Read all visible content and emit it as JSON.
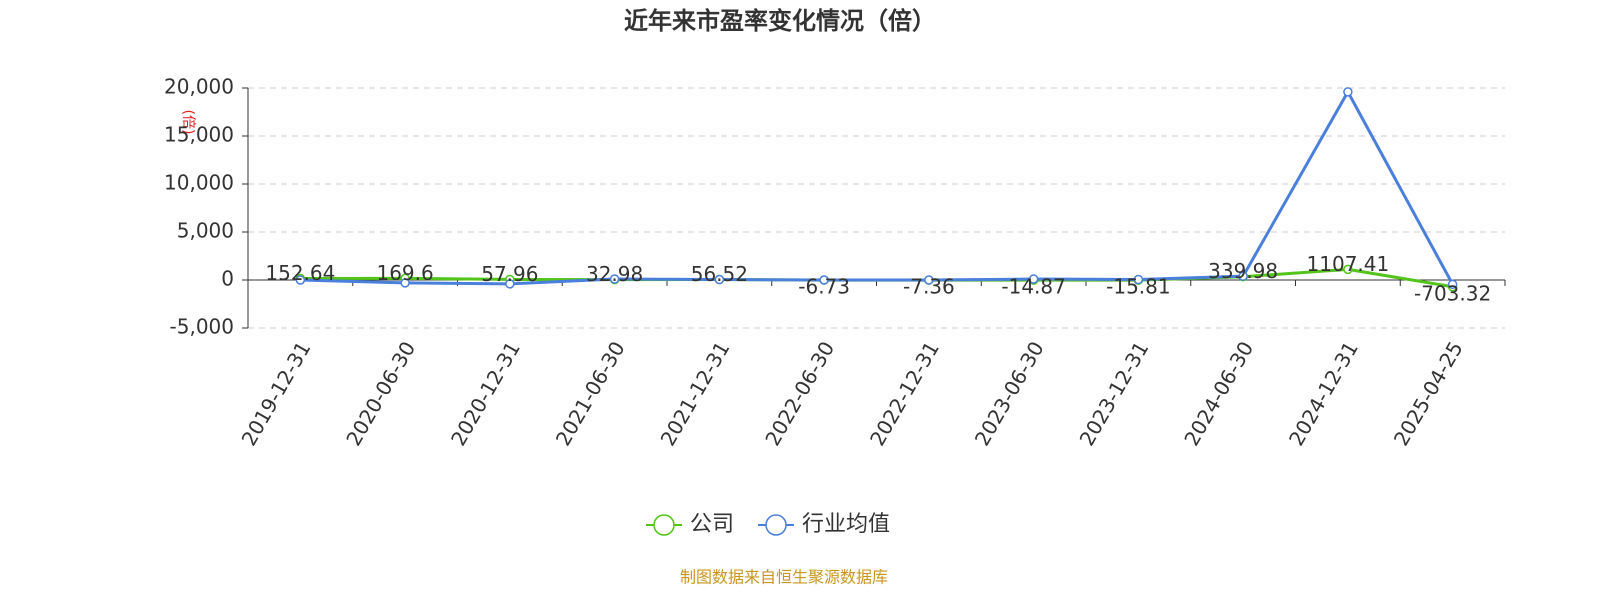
{
  "chart_data": {
    "type": "line",
    "title": "近年来市盈率变化情况（倍）",
    "y_axis_label": "(倍)",
    "source": "制图数据来自恒生聚源数据库",
    "categories": [
      "2019-12-31",
      "2020-06-30",
      "2020-12-31",
      "2021-06-30",
      "2021-12-31",
      "2022-06-30",
      "2022-12-31",
      "2023-06-30",
      "2023-12-31",
      "2024-06-30",
      "2024-12-31",
      "2025-04-25"
    ],
    "series": [
      {
        "name": "公司",
        "color": "#52c41a",
        "values": [
          152.64,
          169.6,
          57.96,
          32.98,
          56.52,
          -6.73,
          -7.36,
          -14.87,
          -15.81,
          339.98,
          1107.41,
          -703.32
        ]
      },
      {
        "name": "行业均值",
        "color": "#4a7fdb",
        "values": [
          0,
          -300,
          -400,
          100,
          50,
          0,
          0,
          100,
          50,
          400,
          19600,
          -450
        ]
      }
    ],
    "ylim": [
      -5000,
      20000
    ],
    "yticks": [
      {
        "value": -5000,
        "label": "-5,000"
      },
      0,
      {
        "value": 5000,
        "label": "5,000"
      },
      {
        "value": 10000,
        "label": "10,000"
      },
      {
        "value": 15000,
        "label": "15,000"
      },
      {
        "value": 20000,
        "label": "20,000"
      }
    ],
    "grid": true,
    "legend": "bottom"
  }
}
